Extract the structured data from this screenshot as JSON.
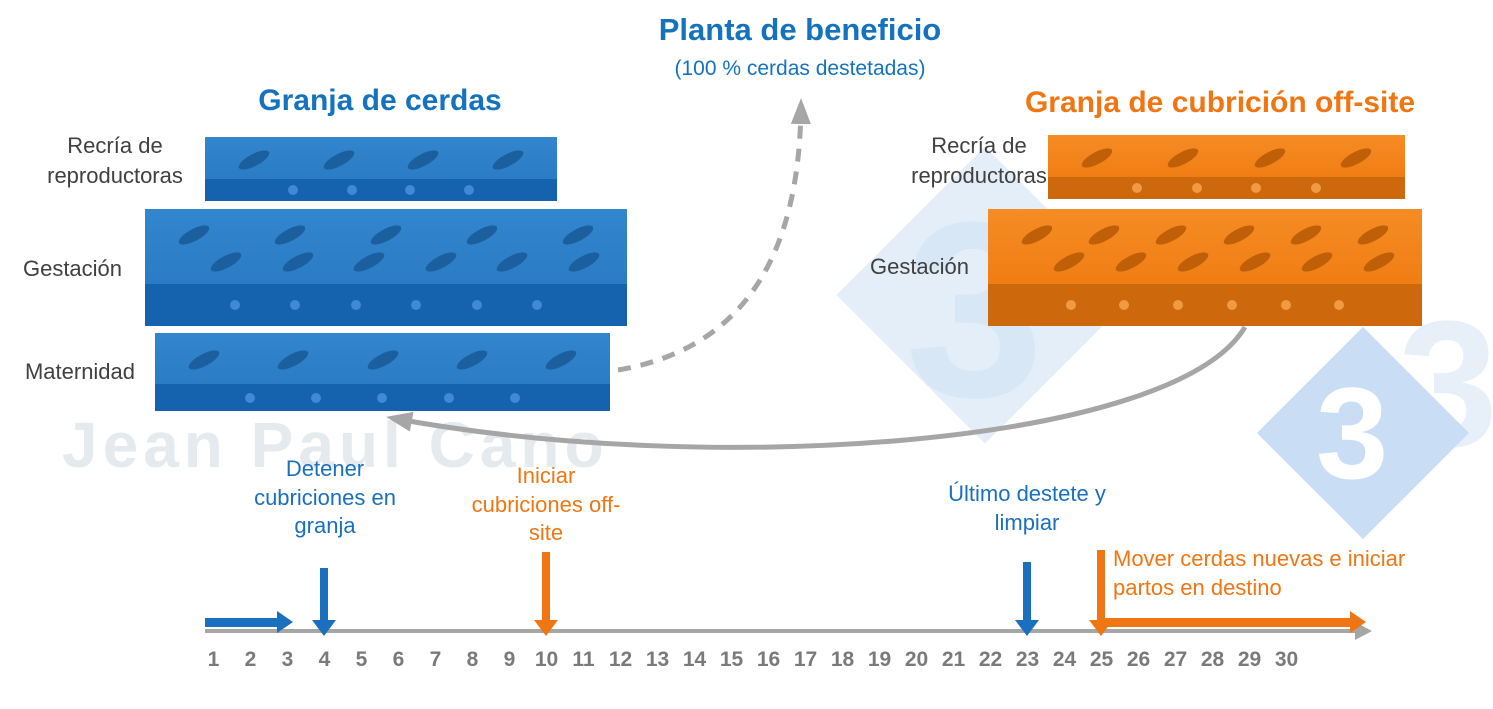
{
  "header": {
    "planta_title": "Planta de beneficio",
    "planta_subtitle": "(100 % cerdas destetadas)"
  },
  "left_farm": {
    "title": "Granja de cerdas",
    "rows": {
      "recria": "Recría de reproductoras",
      "gestacion": "Gestación",
      "maternidad": "Maternidad"
    }
  },
  "right_farm": {
    "title": "Granja de cubrición off-site",
    "rows": {
      "recria": "Recría de reproductoras",
      "gestacion": "Gestación"
    }
  },
  "timeline": {
    "ticks": [
      "1",
      "2",
      "3",
      "4",
      "5",
      "6",
      "7",
      "8",
      "9",
      "10",
      "11",
      "12",
      "13",
      "14",
      "15",
      "16",
      "17",
      "18",
      "19",
      "20",
      "21",
      "22",
      "23",
      "24",
      "25",
      "26",
      "27",
      "28",
      "29",
      "30"
    ],
    "events": {
      "detener": "Detener cubriciones en granja",
      "iniciar": "Iniciar cubriciones off-site",
      "ultimo": "Último destete y limpiar",
      "mover": "Mover cerdas nuevas e iniciar partos en destino"
    }
  },
  "watermark": {
    "name": "Jean Paul Cano",
    "logo_digit": "3"
  },
  "barns": {
    "left_recria": {
      "oval_rows": [
        4
      ],
      "dots": 4
    },
    "left_gestacion": {
      "oval_rows": [
        5,
        6
      ],
      "dots": 6
    },
    "left_maternidad": {
      "oval_rows": [
        5
      ],
      "dots": 5
    },
    "right_recria": {
      "oval_rows": [
        4
      ],
      "dots": 4
    },
    "right_gestacion": {
      "oval_rows": [
        6,
        6
      ],
      "dots": 6
    }
  },
  "colors": {
    "blue": "#1472bf",
    "orange": "#ef7613",
    "barn_blue_top": "#2e80c8",
    "barn_blue_bottom": "#1563ae",
    "barn_orange_top": "#f28019",
    "barn_orange_bottom": "#cd680d",
    "arrow_gray": "#a6a6a6",
    "tick_gray": "#7a7a7a"
  }
}
